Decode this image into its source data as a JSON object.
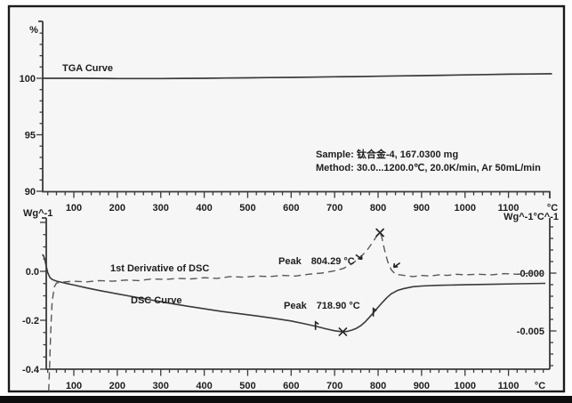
{
  "figure": {
    "background": "#f6f6f6",
    "border_color": "#1a1a1a",
    "curve_color": "#3a3a3a",
    "dashed_color": "#585858",
    "text_color": "#1d1d1d"
  },
  "labels": {
    "tga_curve": "TGA Curve",
    "dsc_curve": "DSC Curve",
    "derivative": "1st Derivative of DSC",
    "peak_derivative": "Peak  804.29 °C",
    "peak_dsc": "Peak  718.90 °C",
    "sample_line": "Sample: 钛合金-4, 167.0300 mg",
    "method_line": "Method: 30.0...1200.0℃, 20.0K/min, Ar 50mL/min",
    "top_y_unit": "%",
    "bottom_left_unit": "Wg^-1",
    "bottom_right_unit": "Wg^-1°C^-1",
    "x_unit_top": "°C",
    "x_unit_bottom": "°C"
  },
  "chart_data": [
    {
      "type": "line",
      "title": "TGA Curve",
      "xlabel": "°C",
      "ylabel": "%",
      "xlim": [
        28,
        1200
      ],
      "ylim": [
        90,
        105
      ],
      "grid": false,
      "x_ticks": [
        100,
        200,
        300,
        400,
        500,
        600,
        700,
        800,
        900,
        1000,
        1100
      ],
      "x_minor_step": 20,
      "y_ticks": [
        100,
        95,
        90
      ],
      "y_minor_step": 1,
      "series": [
        {
          "name": "TGA",
          "points": [
            [
              28,
              100.0
            ],
            [
              100,
              100.0
            ],
            [
              150,
              99.99
            ],
            [
              200,
              99.98
            ],
            [
              250,
              99.98
            ],
            [
              300,
              99.98
            ],
            [
              350,
              99.99
            ],
            [
              400,
              100.0
            ],
            [
              450,
              100.02
            ],
            [
              500,
              100.04
            ],
            [
              550,
              100.06
            ],
            [
              600,
              100.08
            ],
            [
              650,
              100.1
            ],
            [
              700,
              100.13
            ],
            [
              750,
              100.15
            ],
            [
              800,
              100.18
            ],
            [
              850,
              100.21
            ],
            [
              900,
              100.24
            ],
            [
              950,
              100.27
            ],
            [
              1000,
              100.3
            ],
            [
              1050,
              100.33
            ],
            [
              1100,
              100.36
            ],
            [
              1150,
              100.38
            ],
            [
              1200,
              100.4
            ]
          ]
        }
      ]
    },
    {
      "type": "line",
      "xlabel": "°C",
      "ylabel_left": "Wg^-1",
      "ylabel_right": "Wg^-1°C^-1",
      "xlim": [
        28,
        1200
      ],
      "ylim_left": [
        -0.4,
        0.22
      ],
      "ylim_right": [
        -0.0083,
        0.0048
      ],
      "grid": false,
      "x_ticks": [
        100,
        200,
        300,
        400,
        500,
        600,
        700,
        800,
        900,
        1000,
        1100
      ],
      "x_minor_step": 20,
      "y_ticks_left": [
        {
          "label": "0.0",
          "value": 0
        },
        {
          "label": "-0.2",
          "value": -0.2
        },
        {
          "label": "-0.4",
          "value": -0.4
        }
      ],
      "y_minor_step_left": 0.05,
      "y_ticks_right": [
        {
          "label": "-0.000",
          "value": 0
        },
        {
          "label": "-0.005",
          "value": -0.005
        }
      ],
      "y_minor_step_right": 0.001,
      "series": [
        {
          "name": "DSC Curve",
          "axis": "left",
          "peak_c": 718.9,
          "points": [
            [
              27,
              0.068
            ],
            [
              30,
              0.065
            ],
            [
              33,
              0.05
            ],
            [
              36,
              0.025
            ],
            [
              40,
              -0.005
            ],
            [
              45,
              -0.025
            ],
            [
              50,
              -0.033
            ],
            [
              60,
              -0.04
            ],
            [
              70,
              -0.044
            ],
            [
              85,
              -0.05
            ],
            [
              100,
              -0.056
            ],
            [
              130,
              -0.068
            ],
            [
              160,
              -0.079
            ],
            [
              200,
              -0.092
            ],
            [
              240,
              -0.105
            ],
            [
              280,
              -0.118
            ],
            [
              320,
              -0.13
            ],
            [
              360,
              -0.142
            ],
            [
              400,
              -0.153
            ],
            [
              440,
              -0.164
            ],
            [
              480,
              -0.173
            ],
            [
              520,
              -0.182
            ],
            [
              560,
              -0.192
            ],
            [
              600,
              -0.203
            ],
            [
              630,
              -0.214
            ],
            [
              660,
              -0.226
            ],
            [
              680,
              -0.235
            ],
            [
              700,
              -0.243
            ],
            [
              712,
              -0.246
            ],
            [
              719,
              -0.247
            ],
            [
              730,
              -0.245
            ],
            [
              740,
              -0.24
            ],
            [
              750,
              -0.233
            ],
            [
              760,
              -0.222
            ],
            [
              770,
              -0.207
            ],
            [
              780,
              -0.188
            ],
            [
              790,
              -0.168
            ],
            [
              800,
              -0.147
            ],
            [
              810,
              -0.127
            ],
            [
              820,
              -0.108
            ],
            [
              830,
              -0.092
            ],
            [
              845,
              -0.078
            ],
            [
              860,
              -0.07
            ],
            [
              880,
              -0.063
            ],
            [
              900,
              -0.06
            ],
            [
              940,
              -0.057
            ],
            [
              1000,
              -0.055
            ],
            [
              1060,
              -0.053
            ],
            [
              1120,
              -0.051
            ],
            [
              1185,
              -0.049
            ]
          ]
        },
        {
          "name": "1st Derivative of DSC",
          "axis": "right",
          "peak_c": 804.29,
          "points": [
            [
              42,
              -0.0102
            ],
            [
              44,
              -0.0085
            ],
            [
              46,
              -0.006
            ],
            [
              48,
              -0.004
            ],
            [
              50,
              -0.0025
            ],
            [
              55,
              -0.0012
            ],
            [
              60,
              -0.00085
            ],
            [
              80,
              -0.00075
            ],
            [
              100,
              -0.0007
            ],
            [
              130,
              -0.00075
            ],
            [
              160,
              -0.00065
            ],
            [
              190,
              -0.0007
            ],
            [
              220,
              -0.0006
            ],
            [
              250,
              -0.00065
            ],
            [
              280,
              -0.0005
            ],
            [
              310,
              -0.00055
            ],
            [
              340,
              -0.00045
            ],
            [
              370,
              -0.0005
            ],
            [
              400,
              -0.0004
            ],
            [
              430,
              -0.00045
            ],
            [
              460,
              -0.0003
            ],
            [
              490,
              -0.00035
            ],
            [
              520,
              -0.00025
            ],
            [
              550,
              -0.0003
            ],
            [
              580,
              -0.0002
            ],
            [
              610,
              -0.00025
            ],
            [
              640,
              -0.0001
            ],
            [
              670,
              0.0
            ],
            [
              700,
              0.0002
            ],
            [
              720,
              0.0004
            ],
            [
              740,
              0.0008
            ],
            [
              760,
              0.0014
            ],
            [
              775,
              0.002
            ],
            [
              790,
              0.0028
            ],
            [
              800,
              0.0034
            ],
            [
              804,
              0.0035
            ],
            [
              808,
              0.0032
            ],
            [
              815,
              0.002
            ],
            [
              822,
              0.001
            ],
            [
              830,
              0.0003
            ],
            [
              840,
              -0.0001
            ],
            [
              850,
              -0.00015
            ],
            [
              860,
              -0.0002
            ],
            [
              880,
              -0.0003
            ],
            [
              900,
              -0.0002
            ],
            [
              920,
              -0.00025
            ],
            [
              940,
              -0.00015
            ],
            [
              960,
              -0.0002
            ],
            [
              980,
              -0.0001
            ],
            [
              1000,
              -0.00015
            ],
            [
              1030,
              -0.0001
            ],
            [
              1060,
              -0.00015
            ],
            [
              1090,
              -5e-05
            ],
            [
              1120,
              -0.0001
            ],
            [
              1150,
              0.0
            ],
            [
              1185,
              -5e-05
            ]
          ]
        }
      ],
      "annotations": [
        {
          "text": "Peak  804.29 °C",
          "series": "1st Derivative of DSC",
          "t": 804.29
        },
        {
          "text": "Peak  718.90 °C",
          "series": "DSC Curve",
          "t": 718.9
        }
      ],
      "markers": [
        {
          "shape": "x",
          "series": "derivative",
          "t": 804.3,
          "v": 0.0035
        },
        {
          "shape": "x",
          "series": "dsc",
          "t": 718.9,
          "v": -0.247
        },
        {
          "shape": "flag",
          "series": "dsc",
          "t": 656,
          "v": -0.225
        },
        {
          "shape": "flag",
          "series": "dsc",
          "t": 789,
          "v": -0.17
        },
        {
          "shape": "arrow-dr",
          "series": "derivative",
          "t": 763,
          "v": 0.0012
        },
        {
          "shape": "arrow-dl",
          "series": "derivative",
          "t": 836,
          "v": 0.0005
        }
      ]
    }
  ]
}
